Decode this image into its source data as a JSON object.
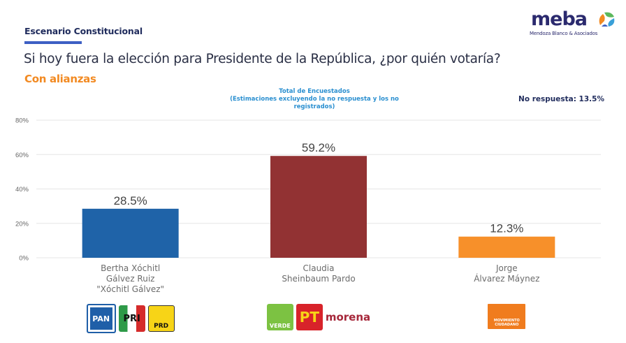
{
  "header": {
    "section": "Escenario Constitucional",
    "question": "Si hoy fuera la elección para Presidente de la República, ¿por quién votaría?",
    "subtitle": "Con alianzas",
    "total_line1": "Total de Encuestados",
    "total_line2": "(Estimaciones excluyendo la no respuesta y los no registrados)",
    "no_response": "No respuesta: 13.5%"
  },
  "brand": {
    "name": "meba",
    "tagline": "Mendoza Blanco & Asociados"
  },
  "colors": {
    "navy": "#1f2b5c",
    "orange_text": "#f28a22",
    "underline": "#3d5fc4",
    "blue_text": "#2a8fd0"
  },
  "candidates": [
    {
      "name_lines": [
        "Bertha Xóchitl",
        "Gálvez Ruiz",
        "\"Xóchitl Gálvez\""
      ],
      "parties": [
        {
          "label": "PAN",
          "icon": "pan-logo-icon"
        },
        {
          "label": "PRI",
          "icon": "pri-logo-icon"
        },
        {
          "label": "PRD",
          "icon": "prd-logo-icon"
        }
      ]
    },
    {
      "name_lines": [
        "Claudia",
        "Sheinbaum Pardo"
      ],
      "parties": [
        {
          "label": "VERDE",
          "icon": "verde-logo-icon"
        },
        {
          "label": "PT",
          "icon": "pt-logo-icon"
        },
        {
          "label": "morena",
          "icon": "morena-logo-icon"
        }
      ]
    },
    {
      "name_lines": [
        "Jorge",
        "Álvarez Máynez"
      ],
      "parties": [
        {
          "label": "MOVIMIENTO CIUDADANO",
          "icon": "movimiento-ciudadano-logo-icon"
        }
      ]
    }
  ],
  "chart_data": {
    "type": "bar",
    "title": "Si hoy fuera la elección para Presidente de la República, ¿por quién votaría?",
    "subtitle": "Con alianzas",
    "categories": [
      "Bertha Xóchitl Gálvez Ruiz \"Xóchitl Gálvez\"",
      "Claudia Sheinbaum Pardo",
      "Jorge Álvarez Máynez"
    ],
    "values": [
      28.5,
      59.2,
      12.3
    ],
    "data_labels": [
      "28.5%",
      "59.2%",
      "12.3%"
    ],
    "bar_colors": [
      "#1f63a8",
      "#923233",
      "#f7902a"
    ],
    "xlabel": "",
    "ylabel": "",
    "ylim": [
      0,
      80
    ],
    "yticks": [
      0,
      20,
      40,
      60,
      80
    ],
    "ytick_labels": [
      "0%",
      "20%",
      "40%",
      "60%",
      "80%"
    ],
    "grid": true,
    "legend": "none"
  }
}
